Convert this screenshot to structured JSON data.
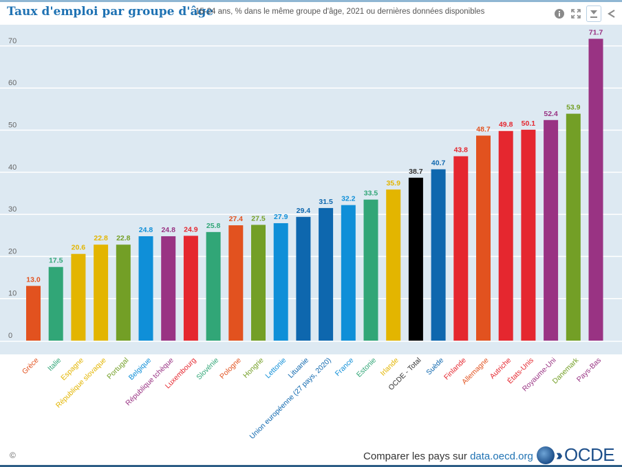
{
  "header": {
    "title": "Taux d'emploi par groupe d'âge",
    "subtitle": "15-24 ans, % dans le même groupe d'âge, 2021 ou dernières données disponibles",
    "icons": [
      "info-icon",
      "fullscreen-icon",
      "download-icon",
      "share-icon"
    ]
  },
  "footer": {
    "copyright": "©",
    "compare_text": "Comparer les pays sur ",
    "link_text": "data.oecd.org",
    "logo_text": "OCDE"
  },
  "chart_data": {
    "type": "bar",
    "title": "Taux d'emploi par groupe d'âge",
    "subtitle": "15-24 ans, % dans le même groupe d'âge, 2021 ou dernières données disponibles",
    "xlabel": "",
    "ylabel": "",
    "ylim": [
      0,
      75
    ],
    "yticks": [
      0,
      10,
      20,
      30,
      40,
      50,
      60,
      70
    ],
    "grid": true,
    "legend": "none",
    "categories": [
      "Grèce",
      "Italie",
      "Espagne",
      "République slovaque",
      "Portugal",
      "Belgique",
      "République tchèque",
      "Luxembourg",
      "Slovénie",
      "Pologne",
      "Hongrie",
      "Lettonie",
      "Lituanie",
      "Union européenne (27 pays, 2020)",
      "France",
      "Estonie",
      "Irlande",
      "OCDE - Total",
      "Suède",
      "Finlande",
      "Allemagne",
      "Autriche",
      "États-Unis",
      "Royaume-Uni",
      "Danemark",
      "Pays-Bas"
    ],
    "values": [
      13.0,
      17.5,
      20.6,
      22.8,
      22.8,
      24.8,
      24.8,
      24.9,
      25.8,
      27.4,
      27.5,
      27.9,
      29.4,
      31.5,
      32.2,
      33.5,
      35.9,
      38.7,
      40.7,
      43.8,
      48.7,
      49.8,
      50.1,
      52.4,
      53.9,
      71.7
    ],
    "value_labels": [
      "13.0",
      "17.5",
      "20.6",
      "22.8",
      "22.8",
      "24.8",
      "24.8",
      "24.9",
      "25.8",
      "27.4",
      "27.5",
      "27.9",
      "29.4",
      "31.5",
      "32.2",
      "33.5",
      "35.9",
      "38.7",
      "40.7",
      "43.8",
      "48.7",
      "49.8",
      "50.1",
      "52.4",
      "53.9",
      "71.7"
    ],
    "colors": [
      "#e2521f",
      "#31a677",
      "#e3b500",
      "#e3b500",
      "#739f26",
      "#0f8fd8",
      "#993383",
      "#e5272f",
      "#31a677",
      "#e2521f",
      "#739f26",
      "#0f8fd8",
      "#0e67ae",
      "#0e67ae",
      "#0f8fd8",
      "#31a677",
      "#e3b500",
      "#000000",
      "#0e67ae",
      "#e5272f",
      "#e2521f",
      "#e5272f",
      "#e5272f",
      "#993383",
      "#739f26",
      "#993383"
    ],
    "label_colors": [
      "#e2521f",
      "#31a677",
      "#e3b500",
      "#e3b500",
      "#739f26",
      "#0f8fd8",
      "#993383",
      "#e5272f",
      "#31a677",
      "#e2521f",
      "#739f26",
      "#0f8fd8",
      "#0e67ae",
      "#0e67ae",
      "#0f8fd8",
      "#31a677",
      "#e3b500",
      "#333333",
      "#0e67ae",
      "#e5272f",
      "#e2521f",
      "#e5272f",
      "#e5272f",
      "#993383",
      "#739f26",
      "#993383"
    ]
  }
}
